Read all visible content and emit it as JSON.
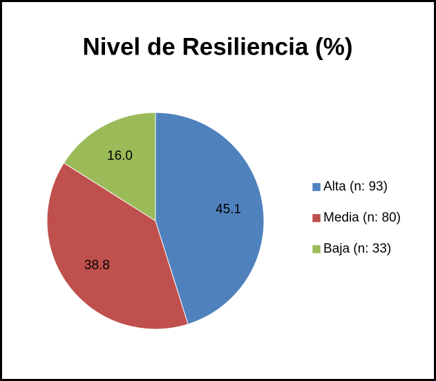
{
  "chart_data": {
    "type": "pie",
    "title": "Nivel de Resiliencia (%)",
    "categories": [
      "Alta (n: 93)",
      "Media (n: 80)",
      "Baja (n: 33)"
    ],
    "values": [
      45.1,
      38.8,
      16.0
    ],
    "value_labels": [
      "45.1",
      "38.8",
      "16.0"
    ],
    "colors": [
      "#4f81bd",
      "#c0504d",
      "#9bbb59"
    ],
    "legend": "right"
  }
}
